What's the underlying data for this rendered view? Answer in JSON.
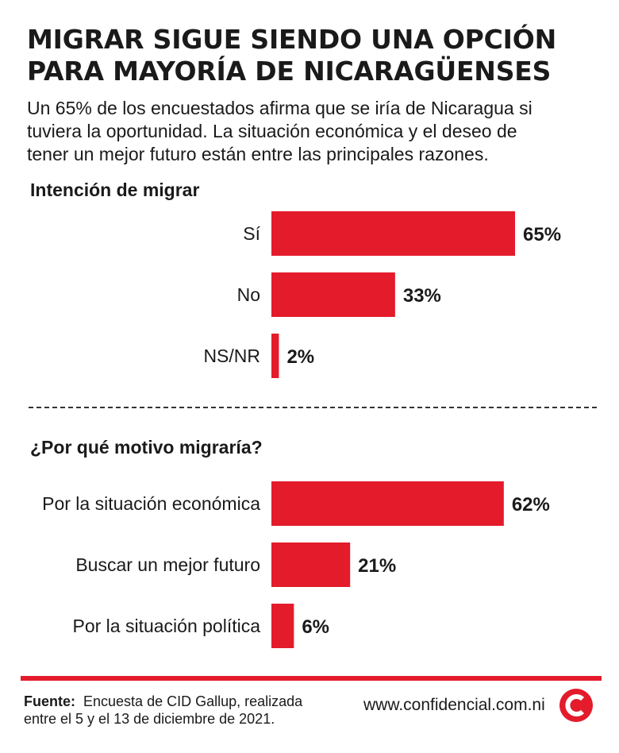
{
  "title_lines": [
    "MIGRAR SIGUE SIENDO UNA OPCIÓN",
    "PARA MAYORÍA DE NICARAGÜENSES"
  ],
  "subtitle_lines": [
    "Un 65% de los encuestados afirma que se iría de Nicaragua si",
    "tuviera la oportunidad. La situación económica y el deseo de",
    "tener un mejor futuro están entre las principales razones."
  ],
  "colors": {
    "bar": "#e31b2b",
    "text": "#1a1a1a",
    "logo": "#e31b2b"
  },
  "chart_data": [
    {
      "type": "bar",
      "orientation": "horizontal",
      "title": "Intención de migrar",
      "categories": [
        "Sí",
        "No",
        "NS/NR"
      ],
      "values": [
        65,
        33,
        2
      ],
      "value_labels": [
        "65%",
        "33%",
        "2%"
      ],
      "xlim": [
        0,
        65
      ],
      "grid": false
    },
    {
      "type": "bar",
      "orientation": "horizontal",
      "title": "¿Por qué motivo migraría?",
      "categories": [
        "Por la situación económica",
        "Buscar un mejor futuro",
        "Por la situación política"
      ],
      "values": [
        62,
        21,
        6
      ],
      "value_labels": [
        "62%",
        "21%",
        "6%"
      ],
      "xlim": [
        0,
        65
      ],
      "grid": false
    }
  ],
  "footer": {
    "source_label": "Fuente:",
    "source_text": "Encuesta de CID Gallup, realizada",
    "source_text_2": "entre el 5 y el 13 de diciembre de 2021.",
    "website": "www.confidencial.com.ni",
    "logo_icon": "confidencial-logo-icon"
  }
}
